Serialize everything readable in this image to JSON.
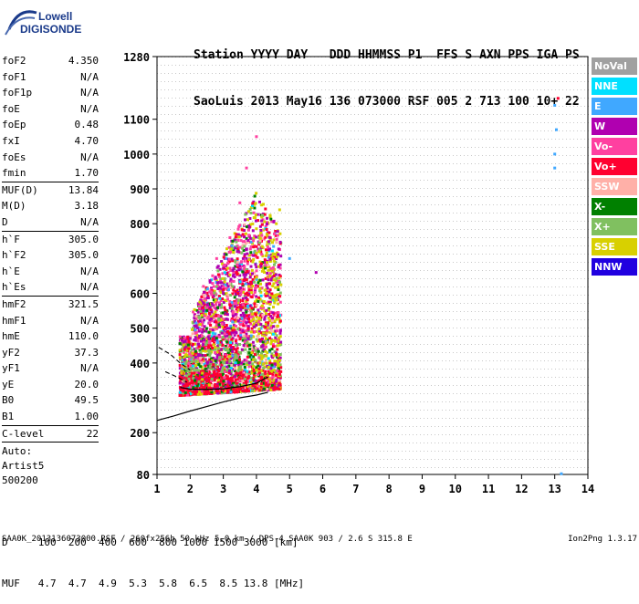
{
  "logo": {
    "line1": "Lowell",
    "line2": "DIGISONDE"
  },
  "header": {
    "labels": "Station YYYY DAY   DDD HHMMSS P1  FFS S AXN PPS IGA PS",
    "values": "SaoLuis 2013 May16 136 073000 RSF 005 2 713 100 10+ 22"
  },
  "params": {
    "group1": [
      {
        "name": "foF2",
        "value": "4.350"
      },
      {
        "name": "foF1",
        "value": "N/A"
      },
      {
        "name": "foF1p",
        "value": "N/A"
      },
      {
        "name": "foE",
        "value": "N/A"
      },
      {
        "name": "foEp",
        "value": "0.48"
      },
      {
        "name": "fxI",
        "value": "4.70"
      },
      {
        "name": "foEs",
        "value": "N/A"
      },
      {
        "name": "fmin",
        "value": "1.70"
      }
    ],
    "group2": [
      {
        "name": "MUF(D)",
        "value": "13.84"
      },
      {
        "name": "M(D)",
        "value": "3.18"
      },
      {
        "name": "D",
        "value": "N/A"
      }
    ],
    "group3": [
      {
        "name": "h`F",
        "value": "305.0"
      },
      {
        "name": "h`F2",
        "value": "305.0"
      },
      {
        "name": "h`E",
        "value": "N/A"
      },
      {
        "name": "h`Es",
        "value": "N/A"
      }
    ],
    "group4": [
      {
        "name": "hmF2",
        "value": "321.5"
      },
      {
        "name": "hmF1",
        "value": "N/A"
      },
      {
        "name": "hmE",
        "value": "110.0"
      },
      {
        "name": "yF2",
        "value": "37.3"
      },
      {
        "name": "yF1",
        "value": "N/A"
      },
      {
        "name": "yE",
        "value": "20.0"
      },
      {
        "name": "B0",
        "value": "49.5"
      },
      {
        "name": "B1",
        "value": "1.00"
      }
    ],
    "group5": [
      {
        "name": "C-level",
        "value": "22"
      }
    ],
    "auto": [
      "Auto:",
      "Artist5",
      "500200"
    ]
  },
  "legend": [
    {
      "label": "NoVal",
      "color": "#a0a0a0"
    },
    {
      "label": "NNE",
      "color": "#00e0ff"
    },
    {
      "label": "E",
      "color": "#40a8ff"
    },
    {
      "label": "W",
      "color": "#b000b0"
    },
    {
      "label": "Vo-",
      "color": "#ff40a0"
    },
    {
      "label": "Vo+",
      "color": "#ff0030"
    },
    {
      "label": "SSW",
      "color": "#ffb0a8"
    },
    {
      "label": "X-",
      "color": "#008000"
    },
    {
      "label": "X+",
      "color": "#80c060"
    },
    {
      "label": "SSE",
      "color": "#d8d000"
    },
    {
      "label": "NNW",
      "color": "#2000e0"
    }
  ],
  "muf_table": {
    "d_line": "D     100  200  400  600  800 1000 1500 3000 [km]",
    "muf_line": "MUF   4.7  4.7  4.9  5.3  5.8  6.5  8.5 13.8 [MHz]"
  },
  "footer": {
    "text": "SAA0K_2013136073000.RSF / 260fx256h 50 kHz 5.0 km / DPS-4 SAA0K 903 / 2.6 S 315.8 E",
    "version": "Ion2Png 1.3.17"
  },
  "chart_data": {
    "type": "scatter",
    "title": "",
    "xlabel": "",
    "ylabel": "",
    "xlim": [
      1,
      14
    ],
    "ylim": [
      80,
      1280
    ],
    "x_ticks": [
      1,
      2,
      3,
      4,
      5,
      6,
      7,
      8,
      9,
      10,
      11,
      12,
      13,
      14
    ],
    "y_ticks": [
      80,
      200,
      300,
      400,
      500,
      600,
      700,
      800,
      900,
      1000,
      1100,
      1280
    ],
    "grid": true,
    "legend_position": "right",
    "echo_trace": {
      "note": "dense ionogram echo region between ~1.6 and 4.7 MHz, 300-1060 km virtual height",
      "points": [
        [
          1.7,
          330,
          "Vo+"
        ],
        [
          1.8,
          325,
          "Vo+"
        ],
        [
          2.0,
          322,
          "Vo+"
        ],
        [
          2.2,
          318,
          "Vo+"
        ],
        [
          2.5,
          318,
          "Vo+"
        ],
        [
          2.8,
          320,
          "Vo+"
        ],
        [
          3.0,
          322,
          "Vo+"
        ],
        [
          3.3,
          325,
          "Vo+"
        ],
        [
          3.6,
          330,
          "Vo+"
        ],
        [
          3.9,
          338,
          "Vo+"
        ],
        [
          4.2,
          350,
          "Vo+"
        ],
        [
          4.4,
          370,
          "Vo+"
        ],
        [
          1.8,
          460,
          "W"
        ],
        [
          2.0,
          470,
          "W"
        ],
        [
          2.3,
          520,
          "W"
        ],
        [
          2.6,
          560,
          "W"
        ],
        [
          3.0,
          600,
          "W"
        ],
        [
          3.3,
          650,
          "W"
        ],
        [
          3.6,
          700,
          "W"
        ],
        [
          3.9,
          780,
          "W"
        ],
        [
          2.4,
          620,
          "Vo-"
        ],
        [
          2.8,
          700,
          "Vo-"
        ],
        [
          3.2,
          760,
          "Vo-"
        ],
        [
          3.5,
          860,
          "Vo-"
        ],
        [
          3.7,
          960,
          "Vo-"
        ],
        [
          4.0,
          1050,
          "Vo-"
        ],
        [
          2.2,
          380,
          "X+"
        ],
        [
          2.6,
          390,
          "X+"
        ],
        [
          3.0,
          400,
          "X+"
        ],
        [
          3.4,
          420,
          "X+"
        ],
        [
          3.8,
          440,
          "X-"
        ],
        [
          4.2,
          460,
          "X-"
        ],
        [
          4.0,
          520,
          "SSE"
        ],
        [
          4.3,
          600,
          "SSE"
        ],
        [
          4.5,
          700,
          "SSE"
        ],
        [
          4.6,
          800,
          "SSE"
        ],
        [
          4.3,
          420,
          "SSE"
        ],
        [
          4.0,
          380,
          "SSE"
        ],
        [
          4.7,
          840,
          "SSE"
        ],
        [
          5.0,
          700,
          "E"
        ],
        [
          5.8,
          660,
          "W"
        ],
        [
          13.0,
          1140,
          "E"
        ],
        [
          13.0,
          1000,
          "E"
        ],
        [
          13.05,
          1070,
          "E"
        ],
        [
          13.0,
          960,
          "E"
        ],
        [
          13.1,
          1160,
          "Vo+"
        ],
        [
          13.2,
          82,
          "E"
        ]
      ]
    },
    "profile_curve": [
      [
        1.0,
        235
      ],
      [
        1.5,
        248
      ],
      [
        2.0,
        262
      ],
      [
        2.5,
        275
      ],
      [
        3.0,
        288
      ],
      [
        3.5,
        300
      ],
      [
        4.0,
        308
      ],
      [
        4.35,
        316
      ]
    ],
    "trace_line": [
      [
        1.7,
        330
      ],
      [
        2.0,
        325
      ],
      [
        2.5,
        324
      ],
      [
        3.0,
        326
      ],
      [
        3.5,
        332
      ],
      [
        4.0,
        342
      ],
      [
        4.35,
        360
      ]
    ],
    "dashed_lines": [
      [
        [
          1.05,
          445
        ],
        [
          1.4,
          425
        ],
        [
          1.7,
          400
        ],
        [
          2.0,
          380
        ]
      ],
      [
        [
          1.25,
          375
        ],
        [
          1.6,
          360
        ],
        [
          1.9,
          345
        ]
      ]
    ]
  }
}
